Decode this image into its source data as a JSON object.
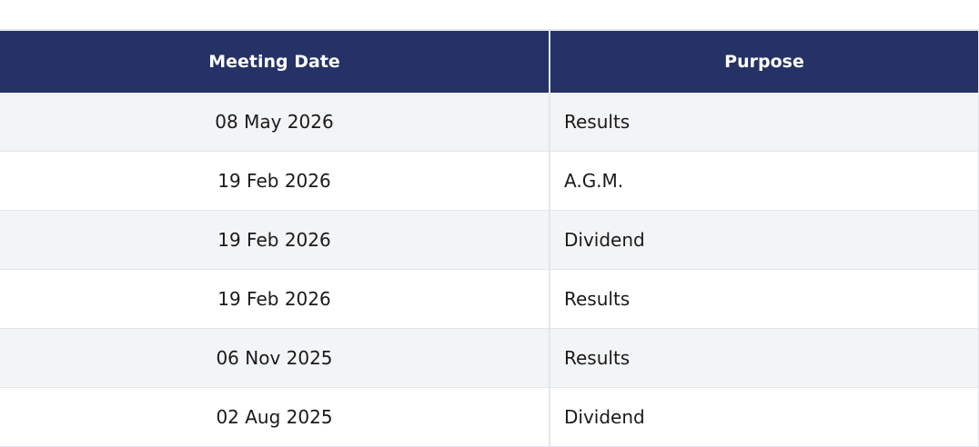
{
  "table": {
    "headers": [
      "Meeting Date",
      "Purpose"
    ],
    "rows": [
      [
        "08 May 2026",
        "Results"
      ],
      [
        "19 Feb 2026",
        "A.G.M."
      ],
      [
        "19 Feb 2026",
        "Dividend"
      ],
      [
        "19 Feb 2026",
        "Results"
      ],
      [
        "06 Nov 2025",
        "Results"
      ],
      [
        "02 Aug 2025",
        "Dividend"
      ]
    ]
  }
}
